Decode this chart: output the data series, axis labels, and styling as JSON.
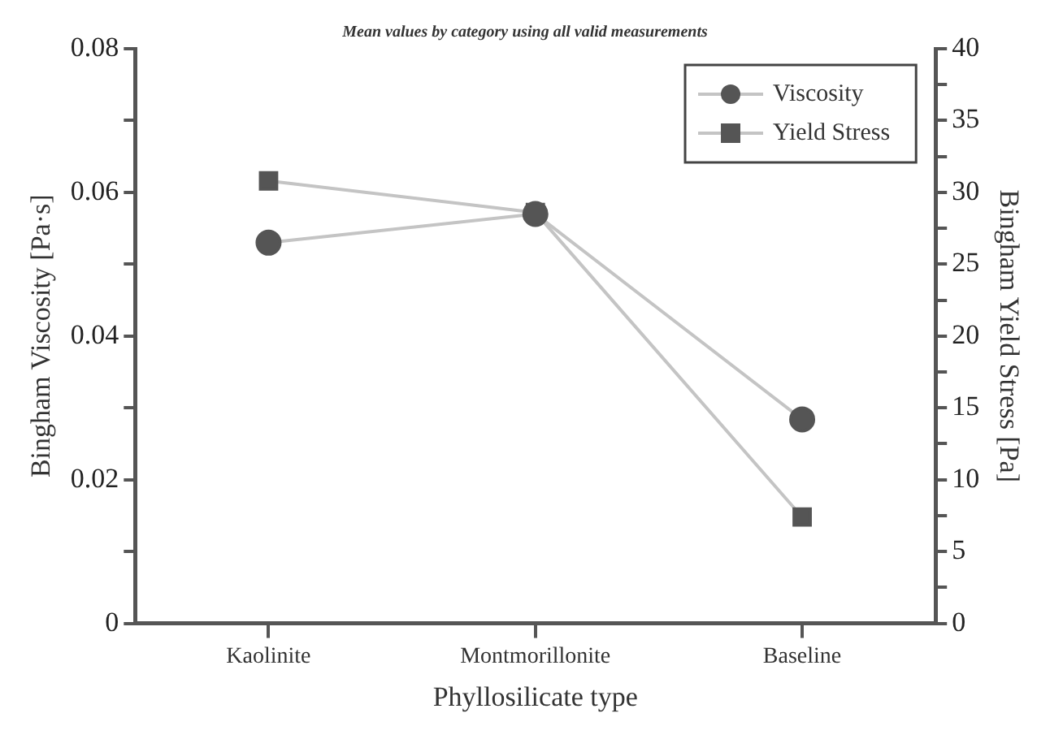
{
  "chart_data": {
    "type": "line",
    "title": "Mean values by category using all valid measurements",
    "xlabel": "Phyllosilicate type",
    "ylabel": "Bingham Viscosity [Pa·s]",
    "y2label": "Bingham Yield Stress [Pa]",
    "categories": [
      "Kaolinite",
      "Montmorillonite",
      "Baseline"
    ],
    "series": [
      {
        "name": "Viscosity",
        "color": "#555555",
        "values": [
          0.053,
          0.057,
          0.0284
        ],
        "marker": "circle"
      },
      {
        "name": "Yield Stress",
        "color": "#555555",
        "values": [
          30.8,
          28.6,
          7.4
        ],
        "axis": "y2",
        "marker": "square"
      }
    ],
    "ylim": [
      0,
      0.08
    ],
    "yticks": [
      0,
      {
        "value": 0.01,
        "label": null
      },
      0.02,
      {
        "value": 0.03,
        "label": null
      },
      0.04,
      {
        "value": 0.05,
        "label": null
      },
      0.06,
      {
        "value": 0.07,
        "label": null
      },
      0.08
    ],
    "y2lim": [
      0,
      40
    ],
    "y2ticks": [
      0,
      {
        "value": 2.5,
        "label": null
      },
      5,
      {
        "value": 7.5,
        "label": null
      },
      10,
      {
        "value": 12.5,
        "label": null
      },
      15,
      {
        "value": 17.5,
        "label": null
      },
      20,
      {
        "value": 22.5,
        "label": null
      },
      25,
      {
        "value": 27.5,
        "label": null
      },
      30,
      {
        "value": 32.5,
        "label": null
      },
      35,
      {
        "value": 37.5,
        "label": null
      },
      40
    ],
    "legend": "top right",
    "grid": false,
    "line_style": "solid"
  }
}
